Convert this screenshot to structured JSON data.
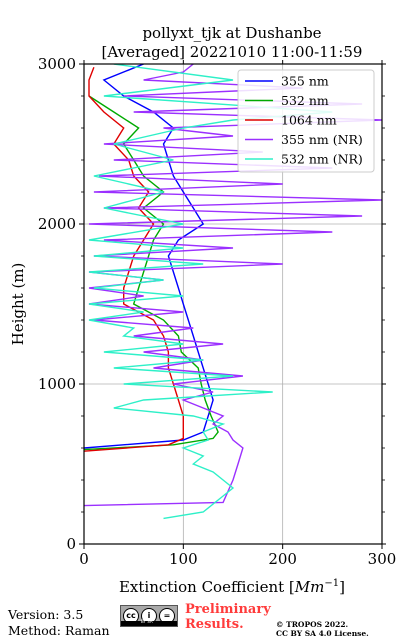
{
  "chart_data": {
    "type": "line",
    "title": "pollyxt_tjk at Dushanbe",
    "subtitle": "[Averaged] 20221010 11:00-11:59",
    "xlabel": "Extinction Coefficient [$Mm^{-1}$]",
    "xlabel_main": "Extinction Coefficient [",
    "xlabel_unit": "Mm",
    "xlabel_exp": "−1",
    "xlabel_close": "]",
    "ylabel": "Height (m)",
    "xlim": [
      0,
      300
    ],
    "ylim": [
      0,
      3000
    ],
    "xticks": [
      0,
      100,
      200,
      300
    ],
    "yticks": [
      0,
      1000,
      2000,
      3000
    ],
    "grid": true,
    "legend": "top-right",
    "series": [
      {
        "name": "355 nm",
        "color": "#0000ff",
        "y": [
          600,
          650,
          700,
          800,
          900,
          1000,
          1100,
          1200,
          1300,
          1400,
          1500,
          1600,
          1700,
          1800,
          1900,
          2000,
          2100,
          2200,
          2300,
          2400,
          2500,
          2600,
          2700,
          2800,
          2900,
          3000
        ],
        "x": [
          0,
          100,
          120,
          125,
          130,
          125,
          120,
          115,
          110,
          105,
          100,
          95,
          90,
          85,
          95,
          120,
          110,
          100,
          90,
          85,
          80,
          90,
          70,
          40,
          20,
          60
        ]
      },
      {
        "name": "532 nm",
        "color": "#00aa00",
        "y": [
          590,
          620,
          660,
          700,
          800,
          900,
          1000,
          1100,
          1200,
          1300,
          1400,
          1500,
          1600,
          1700,
          1800,
          1900,
          2000,
          2100,
          2200,
          2300,
          2400,
          2500,
          2600,
          2700,
          2800
        ],
        "x": [
          0,
          90,
          130,
          135,
          128,
          122,
          118,
          115,
          98,
          95,
          80,
          50,
          55,
          60,
          65,
          70,
          80,
          60,
          80,
          60,
          50,
          40,
          55,
          30,
          5
        ]
      },
      {
        "name": "1064 nm",
        "color": "#e00000",
        "y": [
          580,
          620,
          660,
          700,
          800,
          900,
          1000,
          1100,
          1200,
          1300,
          1400,
          1500,
          1600,
          1700,
          1800,
          1900,
          2000,
          2100,
          2200,
          2300,
          2400,
          2500,
          2600,
          2700,
          2800,
          2900,
          2980
        ],
        "x": [
          0,
          85,
          100,
          100,
          100,
          95,
          90,
          85,
          85,
          80,
          70,
          40,
          40,
          45,
          50,
          60,
          70,
          55,
          65,
          50,
          45,
          30,
          40,
          20,
          5,
          5,
          10
        ]
      },
      {
        "name": "355 nm (NR)",
        "color": "#9b30ff",
        "y": [
          240,
          260,
          400,
          500,
          600,
          650,
          700,
          750,
          800,
          850,
          900,
          950,
          1000,
          1050,
          1100,
          1150,
          1200,
          1250,
          1300,
          1350,
          1400,
          1450,
          1500,
          1550,
          1600,
          1650,
          1700,
          1750,
          1800,
          1850,
          1900,
          1950,
          2000,
          2050,
          2100,
          2150,
          2200,
          2250,
          2300,
          2350,
          2400,
          2450,
          2500,
          2550,
          2600,
          2650,
          2700,
          2750,
          2800,
          2850,
          2900,
          2950,
          3000
        ],
        "x": [
          0,
          140,
          150,
          155,
          160,
          150,
          145,
          130,
          140,
          120,
          100,
          130,
          90,
          160,
          70,
          120,
          60,
          140,
          50,
          110,
          10,
          100,
          5,
          60,
          5,
          80,
          5,
          200,
          10,
          150,
          20,
          250,
          5,
          280,
          20,
          300,
          10,
          200,
          15,
          250,
          30,
          180,
          20,
          150,
          80,
          300,
          50,
          280,
          40,
          220,
          60,
          100,
          110
        ]
      },
      {
        "name": "532 nm (NR)",
        "color": "#2ef0c8",
        "y": [
          160,
          200,
          300,
          350,
          400,
          450,
          500,
          550,
          600,
          650,
          700,
          750,
          800,
          850,
          900,
          950,
          1000,
          1050,
          1100,
          1150,
          1200,
          1250,
          1300,
          1350,
          1400,
          1450,
          1500,
          1550,
          1600,
          1650,
          1700,
          1750,
          1800,
          1850,
          1900,
          2000,
          2100,
          2200,
          2300,
          2400,
          2500,
          2600,
          2650,
          2700,
          2800,
          2900,
          3000
        ],
        "x": [
          80,
          120,
          140,
          150,
          140,
          130,
          110,
          120,
          100,
          125,
          120,
          140,
          110,
          30,
          60,
          190,
          40,
          150,
          30,
          120,
          20,
          100,
          40,
          50,
          5,
          60,
          5,
          100,
          10,
          80,
          5,
          120,
          10,
          100,
          5,
          100,
          20,
          80,
          10,
          90,
          30,
          100,
          150,
          250,
          20,
          150,
          30
        ]
      }
    ]
  },
  "footer": {
    "version": "Version: 3.5",
    "method": "Method: Raman",
    "cc_icons": [
      "cc",
      "i",
      "="
    ],
    "cc_label": "BY SA",
    "preliminary_1": "Preliminary",
    "preliminary_2": "Results.",
    "copyright_1": "© TROPOS 2022.",
    "copyright_2": "CC BY SA 4.0 License."
  }
}
